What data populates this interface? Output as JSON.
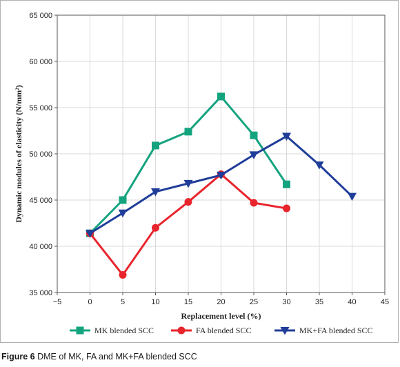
{
  "caption": {
    "label": "Figure 6",
    "text": " DME of MK, FA and MK+FA blended SCC"
  },
  "chart_data": {
    "type": "line",
    "xlabel": "Replacement level (%)",
    "ylabel": "Dynamic modules of elasticity (N/mm²)",
    "xlim": [
      -5,
      45
    ],
    "ylim": [
      35000,
      65000
    ],
    "x_ticks": [
      -5,
      0,
      5,
      10,
      15,
      20,
      25,
      30,
      35,
      40,
      45
    ],
    "x_tick_labels": [
      "−5",
      "0",
      "5",
      "10",
      "15",
      "20",
      "25",
      "30",
      "35",
      "40",
      "45"
    ],
    "y_ticks": [
      35000,
      40000,
      45000,
      50000,
      55000,
      60000,
      65000
    ],
    "y_tick_labels": [
      "35 000",
      "40 000",
      "45 000",
      "50 000",
      "55 000",
      "60 000",
      "65 000"
    ],
    "grid": true,
    "legend_position": "bottom",
    "series": [
      {
        "name": "MK blended SCC",
        "color": "#14a37f",
        "marker": "square",
        "x": [
          0,
          5,
          10,
          15,
          20,
          25,
          30
        ],
        "y": [
          41400,
          45000,
          50900,
          52400,
          56200,
          52000,
          46700
        ]
      },
      {
        "name": "FA blended SCC",
        "color": "#e8242d",
        "marker": "circle",
        "x": [
          0,
          5,
          10,
          15,
          20,
          25,
          30
        ],
        "y": [
          41400,
          36900,
          42000,
          44800,
          47800,
          44700,
          44100
        ]
      },
      {
        "name": "MK+FA blended SCC",
        "color": "#1f3d99",
        "marker": "triangle-down",
        "x": [
          0,
          5,
          10,
          15,
          20,
          25,
          30,
          35,
          40
        ],
        "y": [
          41400,
          43600,
          45900,
          46800,
          47700,
          49900,
          51900,
          48800,
          45400
        ]
      }
    ]
  }
}
